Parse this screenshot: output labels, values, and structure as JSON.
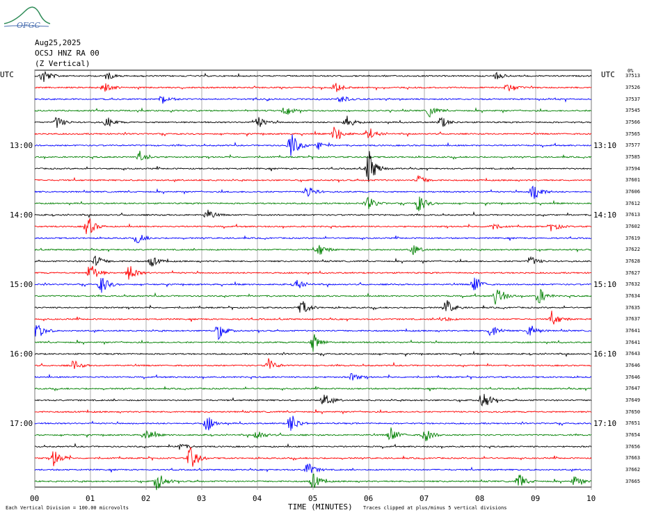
{
  "header": {
    "logo_text": "OFGC",
    "date": "Aug25,2025",
    "station": "OCSJ HNZ RA 00",
    "component": "(Z Vertical)"
  },
  "utc_left": "UTC",
  "utc_right": "UTC",
  "left_time_labels": [
    "13:00",
    "14:00",
    "15:00",
    "16:00",
    "17:00"
  ],
  "right_time_labels": [
    "13:10",
    "14:10",
    "15:10",
    "16:10",
    "17:10"
  ],
  "scale_header": "0%",
  "footer": {
    "division_note": "Each Vertical Division =  100.00 microvolts",
    "clip_note": "Traces clipped at plus/minus 5 vertical divisions"
  },
  "chart_data": {
    "type": "line",
    "xlabel": "TIME (MINUTES)",
    "x_ticks": [
      "00",
      "01",
      "02",
      "03",
      "04",
      "05",
      "06",
      "07",
      "08",
      "09",
      "10"
    ],
    "xlim": [
      0,
      10
    ],
    "trace_colors": [
      "#000000",
      "#ff0000",
      "#0000ff",
      "#008000"
    ],
    "trace_count": 36,
    "scale_values": [
      "37513",
      "37526",
      "37537",
      "37545",
      "37566",
      "37565",
      "37577",
      "37585",
      "37594",
      "37601",
      "37606",
      "37612",
      "37613",
      "37602",
      "37619",
      "37622",
      "37628",
      "37627",
      "37632",
      "37634",
      "37635",
      "37637",
      "37641",
      "37641",
      "37643",
      "37646",
      "37646",
      "37647",
      "37649",
      "37650",
      "37651",
      "37654",
      "37656",
      "37663",
      "37662",
      "37665"
    ],
    "events": [
      {
        "row": 0,
        "t": 0.15,
        "amp": 12
      },
      {
        "row": 0,
        "t": 1.3,
        "amp": 6
      },
      {
        "row": 0,
        "t": 8.3,
        "amp": 5
      },
      {
        "row": 1,
        "t": 1.25,
        "amp": 9
      },
      {
        "row": 1,
        "t": 5.4,
        "amp": 8
      },
      {
        "row": 1,
        "t": 8.5,
        "amp": 6
      },
      {
        "row": 2,
        "t": 2.3,
        "amp": 8
      },
      {
        "row": 2,
        "t": 5.5,
        "amp": 6
      },
      {
        "row": 3,
        "t": 4.5,
        "amp": 8
      },
      {
        "row": 3,
        "t": 7.1,
        "amp": 9
      },
      {
        "row": 4,
        "t": 0.4,
        "amp": 9
      },
      {
        "row": 4,
        "t": 1.3,
        "amp": 8
      },
      {
        "row": 4,
        "t": 4.0,
        "amp": 10
      },
      {
        "row": 4,
        "t": 5.6,
        "amp": 10
      },
      {
        "row": 4,
        "t": 7.3,
        "amp": 9
      },
      {
        "row": 5,
        "t": 5.4,
        "amp": 14
      },
      {
        "row": 5,
        "t": 6.0,
        "amp": 10
      },
      {
        "row": 6,
        "t": 4.6,
        "amp": 22
      },
      {
        "row": 6,
        "t": 5.1,
        "amp": 6
      },
      {
        "row": 7,
        "t": 1.9,
        "amp": 10
      },
      {
        "row": 8,
        "t": 6.0,
        "amp": 28
      },
      {
        "row": 9,
        "t": 6.9,
        "amp": 7
      },
      {
        "row": 10,
        "t": 4.9,
        "amp": 10
      },
      {
        "row": 10,
        "t": 8.95,
        "amp": 18
      },
      {
        "row": 11,
        "t": 6.9,
        "amp": 14
      },
      {
        "row": 11,
        "t": 6.0,
        "amp": 10
      },
      {
        "row": 12,
        "t": 3.1,
        "amp": 8
      },
      {
        "row": 13,
        "t": 0.95,
        "amp": 16
      },
      {
        "row": 13,
        "t": 8.2,
        "amp": 6
      },
      {
        "row": 13,
        "t": 9.3,
        "amp": 7
      },
      {
        "row": 14,
        "t": 1.85,
        "amp": 8
      },
      {
        "row": 15,
        "t": 5.1,
        "amp": 10
      },
      {
        "row": 15,
        "t": 6.8,
        "amp": 7
      },
      {
        "row": 16,
        "t": 1.1,
        "amp": 9
      },
      {
        "row": 16,
        "t": 2.1,
        "amp": 8
      },
      {
        "row": 16,
        "t": 8.9,
        "amp": 8
      },
      {
        "row": 17,
        "t": 1.0,
        "amp": 16
      },
      {
        "row": 17,
        "t": 1.7,
        "amp": 12
      },
      {
        "row": 18,
        "t": 1.2,
        "amp": 14
      },
      {
        "row": 18,
        "t": 4.7,
        "amp": 8
      },
      {
        "row": 18,
        "t": 7.9,
        "amp": 14
      },
      {
        "row": 19,
        "t": 8.3,
        "amp": 18
      },
      {
        "row": 19,
        "t": 9.05,
        "amp": 14
      },
      {
        "row": 20,
        "t": 4.8,
        "amp": 12
      },
      {
        "row": 20,
        "t": 7.4,
        "amp": 12
      },
      {
        "row": 21,
        "t": 9.3,
        "amp": 12
      },
      {
        "row": 21,
        "t": 7.3,
        "amp": 6
      },
      {
        "row": 22,
        "t": 0.05,
        "amp": 14
      },
      {
        "row": 22,
        "t": 3.3,
        "amp": 12
      },
      {
        "row": 22,
        "t": 8.2,
        "amp": 12
      },
      {
        "row": 22,
        "t": 8.9,
        "amp": 10
      },
      {
        "row": 23,
        "t": 5.0,
        "amp": 14
      },
      {
        "row": 25,
        "t": 0.7,
        "amp": 8
      },
      {
        "row": 25,
        "t": 4.2,
        "amp": 10
      },
      {
        "row": 26,
        "t": 5.7,
        "amp": 6
      },
      {
        "row": 28,
        "t": 5.2,
        "amp": 10
      },
      {
        "row": 28,
        "t": 8.05,
        "amp": 16
      },
      {
        "row": 30,
        "t": 3.1,
        "amp": 12
      },
      {
        "row": 30,
        "t": 4.6,
        "amp": 16
      },
      {
        "row": 31,
        "t": 2.0,
        "amp": 10
      },
      {
        "row": 31,
        "t": 4.0,
        "amp": 8
      },
      {
        "row": 31,
        "t": 6.4,
        "amp": 12
      },
      {
        "row": 31,
        "t": 7.0,
        "amp": 12
      },
      {
        "row": 32,
        "t": 2.6,
        "amp": 6
      },
      {
        "row": 33,
        "t": 0.35,
        "amp": 14
      },
      {
        "row": 33,
        "t": 2.8,
        "amp": 20
      },
      {
        "row": 34,
        "t": 4.9,
        "amp": 12
      },
      {
        "row": 35,
        "t": 2.2,
        "amp": 16
      },
      {
        "row": 35,
        "t": 5.0,
        "amp": 12
      },
      {
        "row": 35,
        "t": 8.7,
        "amp": 12
      },
      {
        "row": 35,
        "t": 9.7,
        "amp": 8
      }
    ]
  }
}
